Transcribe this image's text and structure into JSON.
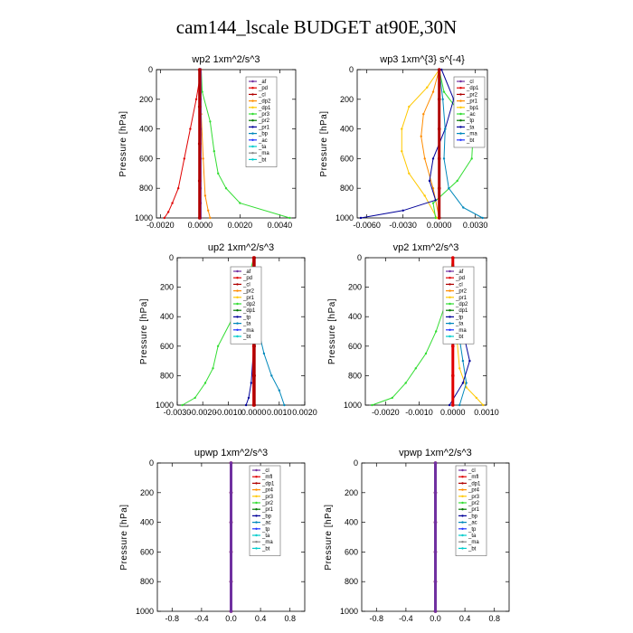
{
  "title": "cam144_lscale  BUDGET at90E,30N",
  "colors": {
    "purple": "#7030a0",
    "red": "#e00000",
    "darkred": "#b00000",
    "orange": "#ff8c00",
    "yellow": "#ffc800",
    "green": "#33dd33",
    "darkgreen": "#007700",
    "navy": "#000099",
    "teal": "#0088bb",
    "blue": "#2233ff",
    "cyan": "#00cccc",
    "gray": "#888888"
  },
  "chart_data": [
    {
      "type": "line",
      "title": "wp2  1xm^2/s^3",
      "ylabel": "Pressure [hPa]",
      "ylim": [
        1000,
        0
      ],
      "xlim": [
        -0.0022,
        0.0048
      ],
      "xticks": [
        -0.002,
        0,
        0.002,
        0.004
      ],
      "xticklabels": [
        "-0.0020",
        "0.0000",
        "0.0020",
        "0.0040"
      ],
      "yticks": [
        0,
        200,
        400,
        600,
        800,
        1000
      ],
      "legend": [
        "_af",
        "_pd",
        "_cl",
        "_dp2",
        "_dp1",
        "_pr3",
        "_pr2",
        "_pr1",
        "_bp",
        "_ac",
        "_ta",
        "_ma",
        "_bt"
      ],
      "series": [
        {
          "color": "red",
          "x": [
            5e-05,
            -0.0002,
            -0.0005,
            -0.0008,
            -0.0011,
            -0.0014,
            -0.0016,
            -0.0018
          ],
          "y": [
            0,
            200,
            400,
            600,
            800,
            900,
            960,
            1000
          ]
        },
        {
          "color": "green",
          "x": [
            5e-05,
            0.0001,
            0.0005,
            0.0007,
            0.0009,
            0.0013,
            0.002,
            0.0045
          ],
          "y": [
            0,
            150,
            350,
            550,
            700,
            800,
            900,
            1000
          ]
        },
        {
          "color": "orange",
          "x": [
            5e-05,
            5e-05,
            0.00015,
            0.00025,
            0.0004,
            0.0005
          ],
          "y": [
            0,
            300,
            600,
            850,
            950,
            1000
          ]
        },
        {
          "color": "purple",
          "x": [
            0,
            0,
            0,
            0,
            0,
            0,
            0
          ],
          "y": [
            0,
            200,
            400,
            600,
            800,
            900,
            1000
          ]
        },
        {
          "color": "darkred",
          "x": [
            -3e-05,
            -3e-05,
            -3e-05,
            -3e-05,
            -3e-05
          ],
          "y": [
            0,
            250,
            500,
            750,
            1000
          ]
        }
      ]
    },
    {
      "type": "line",
      "title": "wp3  1xm^{3} s^{-4}",
      "ylabel": "Pressure [hPa]",
      "ylim": [
        1000,
        0
      ],
      "xlim": [
        -0.0068,
        0.004
      ],
      "xticks": [
        -0.006,
        -0.003,
        0,
        0.003
      ],
      "xticklabels": [
        "-0.0060",
        "-0.0030",
        "0.0000",
        "0.0030"
      ],
      "yticks": [
        0,
        200,
        400,
        600,
        800,
        1000
      ],
      "legend": [
        "_cl",
        "_dp1",
        "_pr2",
        "_pr1",
        "_bp1",
        "_ac",
        "_tp",
        "_ta",
        "_ma",
        "_bt"
      ],
      "series": [
        {
          "color": "yellow",
          "x": [
            0,
            -0.001,
            -0.0025,
            -0.0031,
            -0.0031,
            -0.0025,
            -0.0012,
            -0.0002
          ],
          "y": [
            0,
            120,
            250,
            400,
            550,
            700,
            850,
            1000
          ]
        },
        {
          "color": "orange",
          "x": [
            0,
            -0.0005,
            -0.0013,
            -0.0015,
            -0.0012,
            -0.0005,
            0
          ],
          "y": [
            0,
            150,
            300,
            450,
            600,
            800,
            1000
          ]
        },
        {
          "color": "green",
          "x": [
            0,
            0.0004,
            0.0018,
            0.0028,
            0.0027,
            0.0015,
            -0.0005,
            -0.0003
          ],
          "y": [
            0,
            150,
            300,
            450,
            600,
            750,
            900,
            1000
          ]
        },
        {
          "color": "navy",
          "x": [
            0.0002,
            0.0012,
            0.0005,
            -0.0005,
            -0.0008,
            -0.0003,
            -0.003,
            -0.0065
          ],
          "y": [
            0,
            200,
            400,
            600,
            750,
            880,
            950,
            1000
          ]
        },
        {
          "color": "teal",
          "x": [
            0,
            0.0003,
            0.0005,
            0.0004,
            0.0008,
            0.002,
            0.0036
          ],
          "y": [
            0,
            200,
            400,
            600,
            800,
            930,
            1000
          ]
        },
        {
          "color": "darkred",
          "x": [
            0,
            0,
            0,
            0,
            0,
            0
          ],
          "y": [
            0,
            200,
            400,
            600,
            800,
            1000
          ]
        }
      ]
    },
    {
      "type": "line",
      "title": "up2  1xm^2/s^3",
      "ylabel": "Pressure [hPa]",
      "ylim": [
        1000,
        0
      ],
      "xlim": [
        -0.003,
        0.002
      ],
      "xticks": [
        -0.003,
        -0.002,
        -0.001,
        0,
        0.001,
        0.002
      ],
      "xticklabels": [
        "-0.0030",
        "-0.0020",
        "-0.0010",
        "0.0000",
        "0.0010",
        "0.0020"
      ],
      "yticks": [
        0,
        200,
        400,
        600,
        800,
        1000
      ],
      "legend": [
        "_af",
        "_pd",
        "_cl",
        "_pr2",
        "_pr1",
        "_dp2",
        "_dp1",
        "_tp",
        "_ta",
        "_ma",
        "_bt"
      ],
      "series": [
        {
          "color": "green",
          "x": [
            0,
            -0.0003,
            -0.0008,
            -0.0014,
            -0.0016,
            -0.0019,
            -0.0023,
            -0.0028
          ],
          "y": [
            0,
            200,
            400,
            600,
            750,
            850,
            950,
            1000
          ]
        },
        {
          "color": "teal",
          "x": [
            0,
            0.0001,
            0.0002,
            0.0004,
            0.0007,
            0.001,
            0.0012
          ],
          "y": [
            0,
            300,
            500,
            650,
            800,
            900,
            1000
          ]
        },
        {
          "color": "navy",
          "x": [
            0,
            0,
            -0.0001,
            -0.0002,
            -0.0003
          ],
          "y": [
            0,
            600,
            850,
            950,
            1000
          ]
        },
        {
          "color": "red",
          "x": [
            0,
            0,
            0,
            0,
            0,
            0
          ],
          "y": [
            0,
            200,
            400,
            600,
            800,
            1000
          ]
        },
        {
          "color": "darkred",
          "x": [
            2e-05,
            2e-05,
            2e-05,
            2e-05,
            2e-05,
            2e-05
          ],
          "y": [
            0,
            200,
            400,
            600,
            800,
            1000
          ]
        }
      ]
    },
    {
      "type": "line",
      "title": "vp2  1xm^2/s^3",
      "ylabel": "Pressure [hPa]",
      "ylim": [
        1000,
        0
      ],
      "xlim": [
        -0.0026,
        0.001
      ],
      "xticks": [
        -0.002,
        -0.001,
        0,
        0.001
      ],
      "xticklabels": [
        "-0.0020",
        "-0.0010",
        "0.0000",
        "0.0010"
      ],
      "yticks": [
        0,
        200,
        400,
        600,
        800,
        1000
      ],
      "legend": [
        "_af",
        "_pd",
        "_cl",
        "_pr2",
        "_pr1",
        "_dp2",
        "_dp1",
        "_tp",
        "_ta",
        "_ma",
        "_bt"
      ],
      "series": [
        {
          "color": "green",
          "x": [
            0,
            -0.0002,
            -0.0005,
            -0.0008,
            -0.0011,
            -0.0014,
            -0.0018,
            -0.0024
          ],
          "y": [
            0,
            300,
            500,
            650,
            750,
            850,
            950,
            1000
          ]
        },
        {
          "color": "yellow",
          "x": [
            0,
            0.0001,
            0.0002,
            0.0004,
            0.0007,
            0.0009
          ],
          "y": [
            0,
            500,
            750,
            880,
            950,
            1000
          ]
        },
        {
          "color": "teal",
          "x": [
            0,
            0.0001,
            0.0003,
            0.0004,
            0.0002
          ],
          "y": [
            0,
            400,
            700,
            850,
            1000
          ]
        },
        {
          "color": "navy",
          "x": [
            0,
            0.0002,
            0.0005,
            0.0003,
            -0.0001
          ],
          "y": [
            0,
            400,
            700,
            850,
            1000
          ]
        },
        {
          "color": "red",
          "x": [
            0,
            0,
            0,
            0,
            0,
            0
          ],
          "y": [
            0,
            200,
            400,
            600,
            800,
            1000
          ]
        }
      ]
    },
    {
      "type": "line",
      "title": "upwp  1xm^2/s^3",
      "ylabel": "Pressure [hPa]",
      "ylim": [
        1000,
        0
      ],
      "xlim": [
        -1,
        1
      ],
      "xticks": [
        -0.8,
        -0.4,
        0,
        0.4,
        0.8
      ],
      "xticklabels": [
        "-0.8",
        "-0.4",
        "0.0",
        "0.4",
        "0.8"
      ],
      "yticks": [
        0,
        200,
        400,
        600,
        800,
        1000
      ],
      "legend": [
        "_cl",
        "_mfl",
        "_dp1",
        "_pr4",
        "_pr3",
        "_pr2",
        "_pr1",
        "_bp",
        "_ac",
        "_tp",
        "_ta",
        "_ma",
        "_bt"
      ],
      "series": [
        {
          "color": "darkred",
          "x": [
            0,
            0,
            0,
            0,
            0,
            0
          ],
          "y": [
            0,
            200,
            400,
            600,
            800,
            1000
          ]
        },
        {
          "color": "purple",
          "x": [
            0,
            0,
            0,
            0,
            0,
            0
          ],
          "y": [
            0,
            200,
            400,
            600,
            800,
            1000
          ]
        }
      ]
    },
    {
      "type": "line",
      "title": "vpwp  1xm^2/s^3",
      "ylabel": "Pressure [hPa]",
      "ylim": [
        1000,
        0
      ],
      "xlim": [
        -1,
        1
      ],
      "xticks": [
        -0.8,
        -0.4,
        0,
        0.4,
        0.8
      ],
      "xticklabels": [
        "-0.8",
        "-0.4",
        "0.0",
        "0.4",
        "0.8"
      ],
      "yticks": [
        0,
        200,
        400,
        600,
        800,
        1000
      ],
      "legend": [
        "_cl",
        "_mfl",
        "_dp1",
        "_pr4",
        "_pr3",
        "_pr2",
        "_pr1",
        "_bp",
        "_ac",
        "_tp",
        "_ta",
        "_ma",
        "_bt"
      ],
      "series": [
        {
          "color": "darkred",
          "x": [
            0,
            0,
            0,
            0,
            0,
            0
          ],
          "y": [
            0,
            200,
            400,
            600,
            800,
            1000
          ]
        },
        {
          "color": "purple",
          "x": [
            0,
            0,
            0,
            0,
            0,
            0
          ],
          "y": [
            0,
            200,
            400,
            600,
            800,
            1000
          ]
        }
      ]
    }
  ]
}
